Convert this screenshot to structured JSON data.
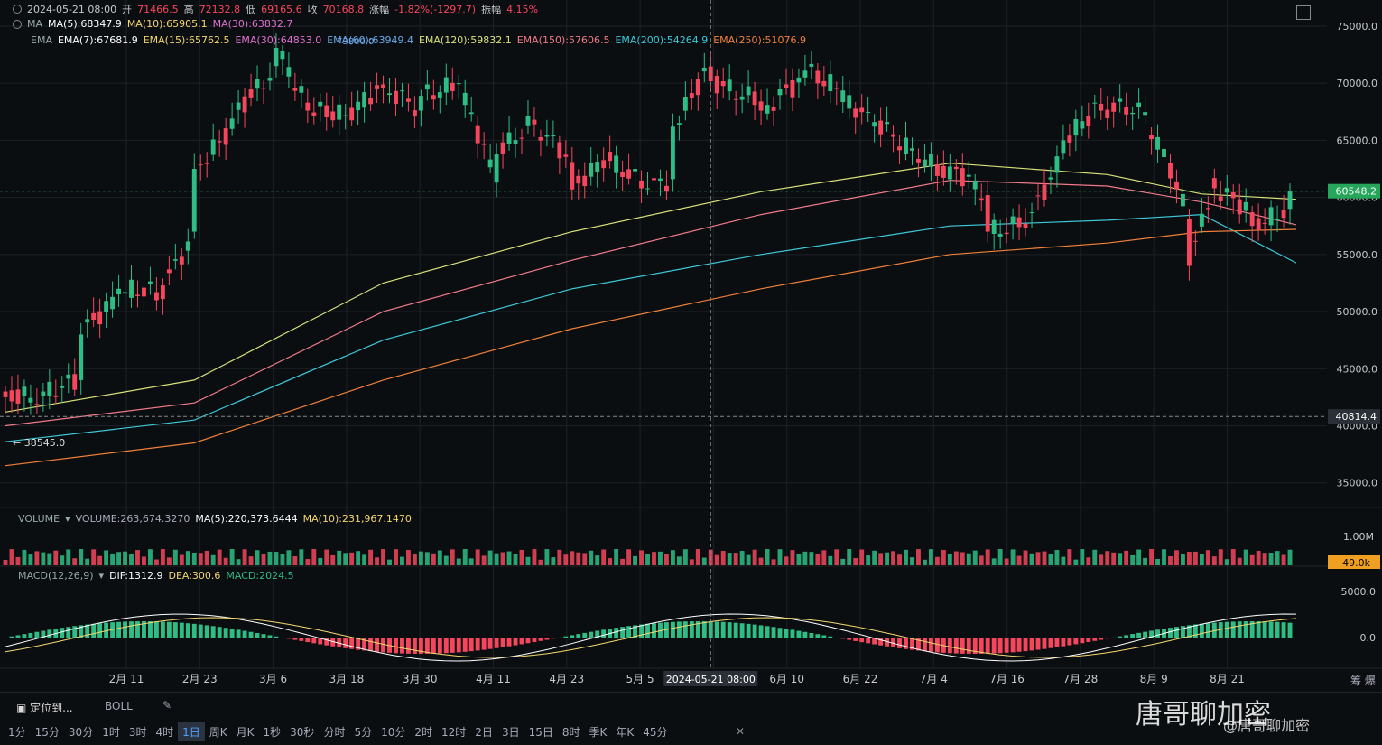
{
  "header": {
    "date": "2024-05-21 08:00",
    "open_label": "开",
    "open": "71466.5",
    "high_label": "高",
    "high": "72132.8",
    "low_label": "低",
    "low": "69165.6",
    "close_label": "收",
    "close": "70168.8",
    "change_label": "涨幅",
    "change": "-1.82%(-1297.7)",
    "amp_label": "振幅",
    "amp": "4.15%"
  },
  "ma": {
    "label": "MA",
    "items": [
      {
        "text": "MA(5):68347.9",
        "color": "#ffffff"
      },
      {
        "text": "MA(10):65905.1",
        "color": "#f5d76e"
      },
      {
        "text": "MA(30):63832.7",
        "color": "#e070d0"
      }
    ]
  },
  "ema": {
    "label": "EMA",
    "items": [
      {
        "text": "EMA(7):67681.9",
        "color": "#ffffff"
      },
      {
        "text": "EMA(15):65762.5",
        "color": "#f5d76e"
      },
      {
        "text": "EMA(30):64853.0",
        "color": "#e070d0"
      },
      {
        "text": "EMA(60):63949.4",
        "color": "#6aa8e8"
      },
      {
        "text": "EMA(120):59832.1",
        "color": "#d8e07a"
      },
      {
        "text": "EMA(150):57606.5",
        "color": "#f07a8a"
      },
      {
        "text": "EMA(200):54264.9",
        "color": "#3ec8d8"
      },
      {
        "text": "EMA(250):51076.9",
        "color": "#f0803a"
      }
    ],
    "overlay_text": "73800.0"
  },
  "price_axis": {
    "ticks": [
      "75000.0",
      "70000.0",
      "65000.0",
      "60000.0",
      "55000.0",
      "50000.0",
      "45000.0",
      "40000.0",
      "35000.0"
    ],
    "current": "60548.2",
    "current_color": "#26a65b",
    "crosshair": "40814.4",
    "low_marker": "38545.0"
  },
  "volume": {
    "label": "VOLUME",
    "value": "VOLUME:263,674.3270",
    "ma5": "MA(5):220,373.6444",
    "ma10": "MA(10):231,967.1470",
    "axis_tick": "1.00M",
    "current": "49.0k",
    "current_color": "#f0a020"
  },
  "macd": {
    "label": "MACD(12,26,9)",
    "dif": "DIF:1312.9",
    "dea": "DEA:300.6",
    "macd": "MACD:2024.5",
    "ticks": [
      "5000.0",
      "0.0"
    ]
  },
  "x_axis": {
    "ticks": [
      "2月 11",
      "2月 23",
      "3月 6",
      "3月 18",
      "3月 30",
      "4月 11",
      "4月 23",
      "5月 5",
      "29",
      "6月 10",
      "6月 22",
      "7月 4",
      "7月 16",
      "7月 28",
      "8月 9",
      "8月 21"
    ],
    "crosshair_label": "2024-05-21 08:00"
  },
  "bottom_bar": {
    "locate": "定位到...",
    "indicator": "BOLL",
    "right_label": "筹 爆",
    "timeframes": [
      "1分",
      "15分",
      "30分",
      "1时",
      "3时",
      "4时",
      "1日",
      "周K",
      "月K",
      "1秒",
      "30秒",
      "分时",
      "5分",
      "10分",
      "2时",
      "12时",
      "2日",
      "3日",
      "15日",
      "8时",
      "季K",
      "年K",
      "45分"
    ],
    "active": "1日"
  },
  "watermark": {
    "big": "唐哥聊加密",
    "small": "@唐哥聊加密"
  },
  "colors": {
    "up": "#2ebd85",
    "down": "#f6465d",
    "bg": "#0b0e11",
    "grid": "#1c2127"
  },
  "chart_data": {
    "type": "candlestick",
    "x_range": [
      "2024-01-30",
      "2024-08-22"
    ],
    "ylim": [
      33000,
      76500
    ],
    "series_daily_close": [
      {
        "date": "2024-01-30",
        "open": 43000,
        "close": 42500
      },
      {
        "date": "2024-02-05",
        "open": 42600,
        "close": 43000
      },
      {
        "date": "2024-02-11",
        "open": 44000,
        "close": 48000
      },
      {
        "date": "2024-02-17",
        "open": 51500,
        "close": 52000
      },
      {
        "date": "2024-02-23",
        "open": 51700,
        "close": 51000
      },
      {
        "date": "2024-02-29",
        "open": 57000,
        "close": 62500
      },
      {
        "date": "2024-03-06",
        "open": 66000,
        "close": 66900
      },
      {
        "date": "2024-03-13",
        "open": 71500,
        "close": 73100
      },
      {
        "date": "2024-03-18",
        "open": 68300,
        "close": 67600
      },
      {
        "date": "2024-03-24",
        "open": 67200,
        "close": 67200
      },
      {
        "date": "2024-03-30",
        "open": 69900,
        "close": 69600
      },
      {
        "date": "2024-04-05",
        "open": 67600,
        "close": 68900
      },
      {
        "date": "2024-04-11",
        "open": 70000,
        "close": 70000
      },
      {
        "date": "2024-04-17",
        "open": 61300,
        "close": 63800
      },
      {
        "date": "2024-04-23",
        "open": 66800,
        "close": 66400
      },
      {
        "date": "2024-04-29",
        "open": 63100,
        "close": 60700
      },
      {
        "date": "2024-05-05",
        "open": 64000,
        "close": 63200
      },
      {
        "date": "2024-05-11",
        "open": 60800,
        "close": 60800
      },
      {
        "date": "2024-05-15",
        "open": 61600,
        "close": 66200
      },
      {
        "date": "2024-05-21",
        "open": 71466.5,
        "close": 70168.8
      },
      {
        "date": "2024-05-29",
        "open": 68400,
        "close": 67600
      },
      {
        "date": "2024-06-05",
        "open": 70500,
        "close": 71100
      },
      {
        "date": "2024-06-10",
        "open": 69600,
        "close": 69500
      },
      {
        "date": "2024-06-16",
        "open": 66200,
        "close": 66600
      },
      {
        "date": "2024-06-22",
        "open": 64100,
        "close": 64300
      },
      {
        "date": "2024-06-28",
        "open": 61600,
        "close": 62700
      },
      {
        "date": "2024-07-04",
        "open": 60200,
        "close": 57000
      },
      {
        "date": "2024-07-10",
        "open": 57700,
        "close": 57300
      },
      {
        "date": "2024-07-16",
        "open": 63900,
        "close": 65000
      },
      {
        "date": "2024-07-22",
        "open": 68200,
        "close": 67600
      },
      {
        "date": "2024-07-28",
        "open": 67900,
        "close": 68300
      },
      {
        "date": "2024-08-03",
        "open": 61400,
        "close": 60700
      },
      {
        "date": "2024-08-05",
        "open": 58100,
        "close": 54000
      },
      {
        "date": "2024-08-09",
        "open": 61700,
        "close": 60800
      },
      {
        "date": "2024-08-15",
        "open": 58700,
        "close": 57500
      },
      {
        "date": "2024-08-21",
        "open": 59000,
        "close": 60548.2
      }
    ],
    "ema_lines": [
      {
        "name": "EMA(120)",
        "color": "#d8e07a",
        "points": [
          [
            0,
            41200
          ],
          [
            30,
            44000
          ],
          [
            60,
            52500
          ],
          [
            90,
            57000
          ],
          [
            120,
            60500
          ],
          [
            150,
            63000
          ],
          [
            175,
            62000
          ],
          [
            190,
            60300
          ],
          [
            205,
            59832
          ]
        ]
      },
      {
        "name": "EMA(150)",
        "color": "#f07a8a",
        "points": [
          [
            0,
            40000
          ],
          [
            30,
            42000
          ],
          [
            60,
            50000
          ],
          [
            90,
            54500
          ],
          [
            120,
            58500
          ],
          [
            150,
            61500
          ],
          [
            175,
            61000
          ],
          [
            190,
            59600
          ],
          [
            205,
            57606
          ]
        ]
      },
      {
        "name": "EMA(200)",
        "color": "#3ec8d8",
        "points": [
          [
            0,
            38600
          ],
          [
            30,
            40500
          ],
          [
            60,
            47500
          ],
          [
            90,
            52000
          ],
          [
            120,
            55000
          ],
          [
            150,
            57500
          ],
          [
            175,
            58000
          ],
          [
            190,
            58500
          ],
          [
            205,
            54265
          ]
        ]
      },
      {
        "name": "EMA(250)",
        "color": "#f0803a",
        "points": [
          [
            0,
            36500
          ],
          [
            30,
            38500
          ],
          [
            60,
            44000
          ],
          [
            90,
            48500
          ],
          [
            120,
            52000
          ],
          [
            150,
            55000
          ],
          [
            175,
            56000
          ],
          [
            190,
            57000
          ],
          [
            205,
            57200
          ]
        ]
      }
    ]
  }
}
